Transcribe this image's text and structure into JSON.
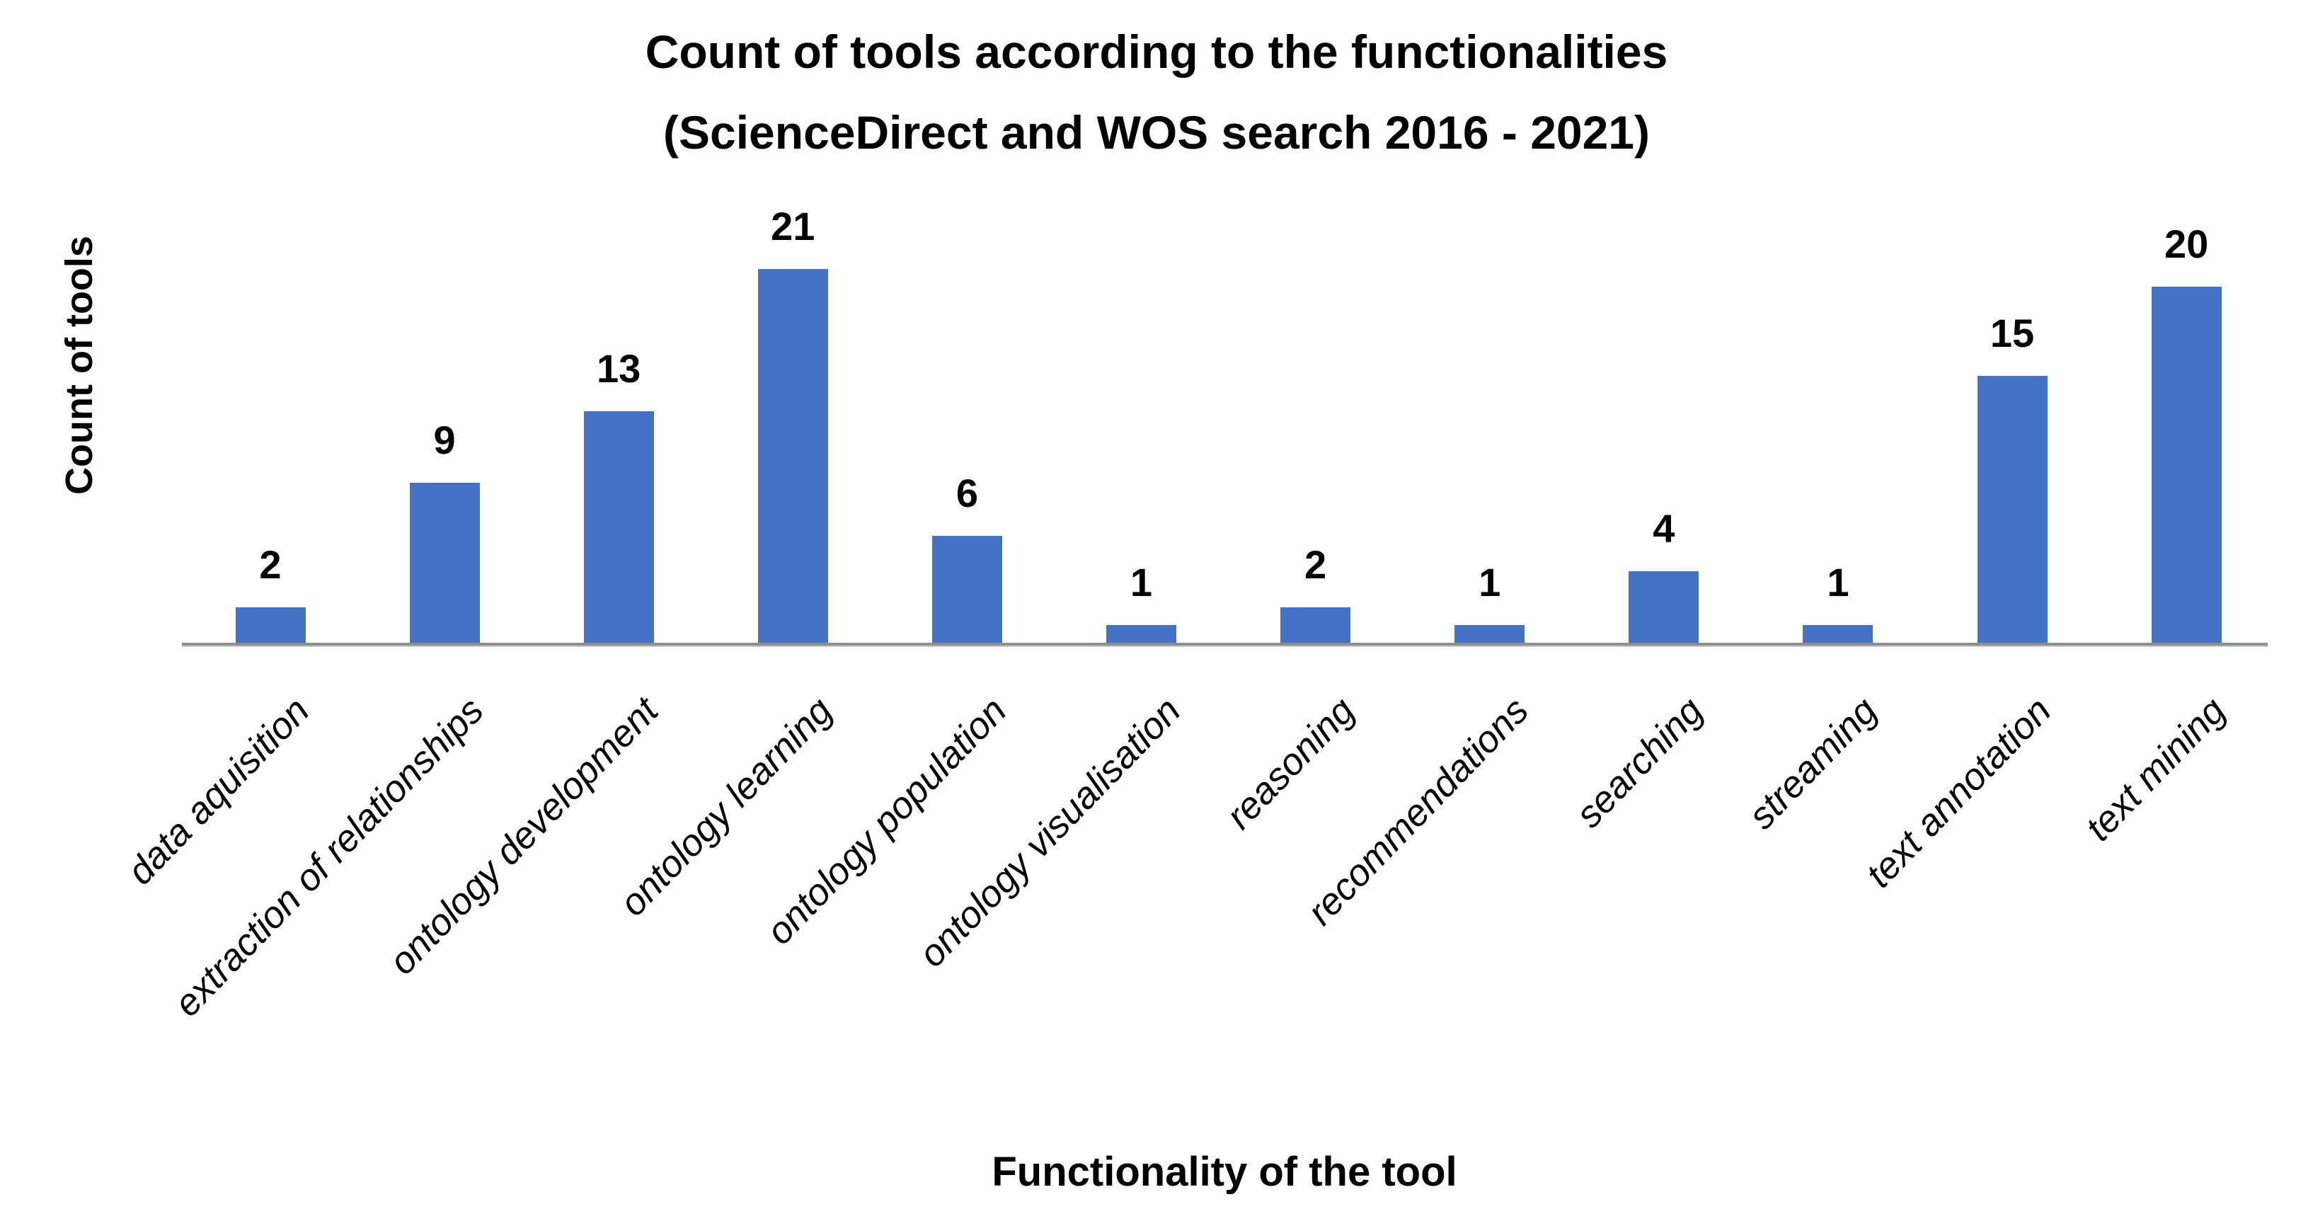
{
  "chart_data": {
    "type": "bar",
    "title": "Count of tools according to the functionalities (ScienceDirect and WOS search 2016 - 2021)",
    "title_lines": [
      "Count of tools according to the functionalities",
      "(ScienceDirect and WOS search 2016 - 2021)"
    ],
    "xlabel": "Functionality of the tool",
    "ylabel": "Count of tools",
    "categories": [
      "data aquisition",
      "extraction of relationships",
      "ontology development",
      "ontology learning",
      "ontology population",
      "ontology visualisation",
      "reasoning",
      "recommendations",
      "searching",
      "streaming",
      "text annotation",
      "text mining"
    ],
    "values": [
      2,
      9,
      13,
      21,
      6,
      1,
      2,
      1,
      4,
      1,
      15,
      20
    ],
    "data_labels": [
      2,
      9,
      13,
      21,
      6,
      1,
      2,
      1,
      4,
      1,
      15,
      20
    ],
    "bar_color": "#4472C4",
    "axis_line_color": "#8E8E8E",
    "text_color": "#000000",
    "background_color": "#FFFFFF",
    "ylim": [
      0,
      21
    ],
    "grid": false,
    "legend": false,
    "x_tick_rotation_deg": 46,
    "x_tick_style": "italic"
  }
}
